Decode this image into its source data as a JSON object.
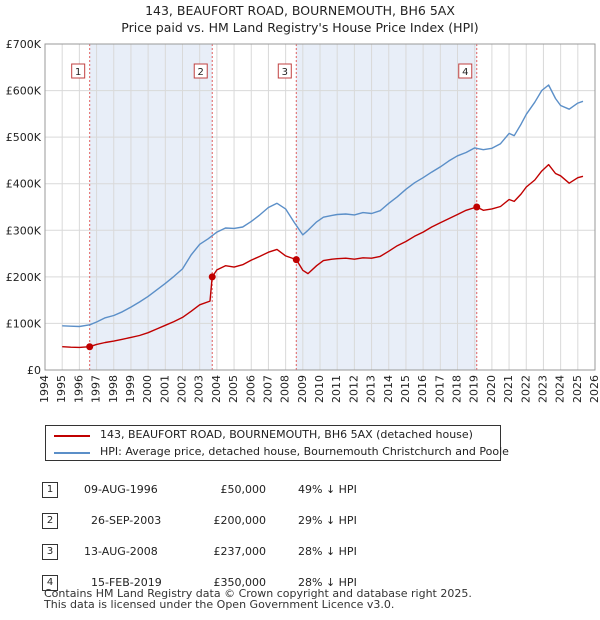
{
  "title_line1": "143, BEAUFORT ROAD, BOURNEMOUTH, BH6 5AX",
  "title_line2": "Price paid vs. HM Land Registry's House Price Index (HPI)",
  "colors": {
    "property": "#c00000",
    "hpi": "#5b8fc8",
    "shade": "#e8eef8",
    "grid": "#d9d9d9"
  },
  "legend": {
    "property": "143, BEAUFORT ROAD, BOURNEMOUTH, BH6 5AX (detached house)",
    "hpi": "HPI: Average price, detached house, Bournemouth Christchurch and Poole"
  },
  "sales": [
    {
      "num": "1",
      "date": "09-AUG-1996",
      "price": "£50,000",
      "hpi_diff": "49% ↓ HPI"
    },
    {
      "num": "2",
      "date": "26-SEP-2003",
      "price": "£200,000",
      "hpi_diff": "29% ↓ HPI"
    },
    {
      "num": "3",
      "date": "13-AUG-2008",
      "price": "£237,000",
      "hpi_diff": "28% ↓ HPI"
    },
    {
      "num": "4",
      "date": "15-FEB-2019",
      "price": "£350,000",
      "hpi_diff": "28% ↓ HPI"
    }
  ],
  "footer_line1": "Contains HM Land Registry data © Crown copyright and database right 2025.",
  "footer_line2": "This data is licensed under the Open Government Licence v3.0.",
  "chart_data": {
    "type": "line",
    "title": "143, BEAUFORT ROAD, BOURNEMOUTH, BH6 5AX",
    "subtitle": "Price paid vs. HM Land Registry's House Price Index (HPI)",
    "xlabel": "",
    "ylabel": "",
    "xlim": [
      1994,
      2026
    ],
    "ylim": [
      0,
      700000
    ],
    "grid": true,
    "x_ticks": [
      "1994",
      "1995",
      "1996",
      "1997",
      "1998",
      "1999",
      "2000",
      "2001",
      "2002",
      "2003",
      "2004",
      "2005",
      "2006",
      "2007",
      "2008",
      "2009",
      "2010",
      "2011",
      "2012",
      "2013",
      "2014",
      "2015",
      "2016",
      "2017",
      "2018",
      "2019",
      "2020",
      "2021",
      "2022",
      "2023",
      "2024",
      "2025",
      "2026"
    ],
    "y_ticks": [
      {
        "value": 0,
        "label": "£0"
      },
      {
        "value": 100000,
        "label": "£100K"
      },
      {
        "value": 200000,
        "label": "£200K"
      },
      {
        "value": 300000,
        "label": "£300K"
      },
      {
        "value": 400000,
        "label": "£400K"
      },
      {
        "value": 500000,
        "label": "£500K"
      },
      {
        "value": 600000,
        "label": "£600K"
      },
      {
        "value": 700000,
        "label": "£700K"
      }
    ],
    "sale_markers": [
      {
        "label": "1",
        "x": 1996.6,
        "y": 50000
      },
      {
        "label": "2",
        "x": 2003.73,
        "y": 200000
      },
      {
        "label": "3",
        "x": 2008.62,
        "y": 237000
      },
      {
        "label": "4",
        "x": 2019.12,
        "y": 350000
      }
    ],
    "series": [
      {
        "name": "143, BEAUFORT ROAD, BOURNEMOUTH, BH6 5AX (detached house)",
        "x": [
          1995.0,
          1995.5,
          1996.0,
          1996.6,
          1997.0,
          1997.5,
          1998.0,
          1998.5,
          1999.0,
          1999.5,
          2000.0,
          2000.5,
          2001.0,
          2001.5,
          2002.0,
          2002.5,
          2003.0,
          2003.6,
          2003.73,
          2004.0,
          2004.5,
          2005.0,
          2005.5,
          2006.0,
          2006.5,
          2007.0,
          2007.5,
          2008.0,
          2008.62,
          2009.0,
          2009.3,
          2009.8,
          2010.2,
          2010.7,
          2011.0,
          2011.5,
          2012.0,
          2012.5,
          2013.0,
          2013.5,
          2014.0,
          2014.5,
          2015.0,
          2015.5,
          2016.0,
          2016.5,
          2017.0,
          2017.5,
          2018.0,
          2018.5,
          2019.12,
          2019.5,
          2020.0,
          2020.5,
          2021.0,
          2021.3,
          2021.7,
          2022.0,
          2022.5,
          2022.9,
          2023.3,
          2023.7,
          2024.0,
          2024.5,
          2025.0,
          2025.3
        ],
        "values": [
          50000,
          49000,
          48500,
          50000,
          55000,
          59000,
          62000,
          66000,
          70000,
          74000,
          80000,
          88000,
          96000,
          104000,
          113000,
          126000,
          140000,
          148000,
          200000,
          215000,
          224000,
          221000,
          226000,
          236000,
          244000,
          253000,
          259000,
          245000,
          237000,
          214000,
          207000,
          224000,
          235000,
          238000,
          239000,
          240000,
          238000,
          241000,
          240000,
          244000,
          255000,
          267000,
          276000,
          287000,
          296000,
          307000,
          316000,
          325000,
          334000,
          343000,
          350000,
          343000,
          346000,
          351000,
          366000,
          362000,
          378000,
          393000,
          408000,
          427000,
          441000,
          422000,
          417000,
          401000,
          413000,
          416000
        ]
      },
      {
        "name": "HPI: Average price, detached house, Bournemouth Christchurch and Poole",
        "x": [
          1995.0,
          1995.5,
          1996.0,
          1996.6,
          1997.0,
          1997.5,
          1998.0,
          1998.5,
          1999.0,
          1999.5,
          2000.0,
          2000.5,
          2001.0,
          2001.5,
          2002.0,
          2002.5,
          2003.0,
          2003.5,
          2004.0,
          2004.5,
          2005.0,
          2005.5,
          2006.0,
          2006.5,
          2007.0,
          2007.5,
          2008.0,
          2008.5,
          2009.0,
          2009.3,
          2009.8,
          2010.2,
          2010.7,
          2011.0,
          2011.5,
          2012.0,
          2012.5,
          2013.0,
          2013.5,
          2014.0,
          2014.5,
          2015.0,
          2015.5,
          2016.0,
          2016.5,
          2017.0,
          2017.5,
          2018.0,
          2018.5,
          2019.0,
          2019.5,
          2020.0,
          2020.5,
          2021.0,
          2021.3,
          2021.7,
          2022.0,
          2022.5,
          2022.9,
          2023.3,
          2023.7,
          2024.0,
          2024.5,
          2025.0,
          2025.3
        ],
        "values": [
          95000,
          94000,
          93500,
          97000,
          103000,
          112000,
          117000,
          125000,
          135000,
          146000,
          158000,
          172000,
          186000,
          201000,
          217000,
          247000,
          270000,
          282000,
          296000,
          305000,
          304000,
          307000,
          319000,
          333000,
          349000,
          358000,
          346000,
          317000,
          290000,
          300000,
          318000,
          328000,
          332000,
          334000,
          335000,
          333000,
          338000,
          336000,
          342000,
          358000,
          372000,
          388000,
          402000,
          413000,
          425000,
          436000,
          449000,
          460000,
          467000,
          477000,
          473000,
          476000,
          486000,
          508000,
          503000,
          528000,
          549000,
          575000,
          600000,
          612000,
          583000,
          568000,
          560000,
          573000,
          577000
        ]
      }
    ]
  }
}
